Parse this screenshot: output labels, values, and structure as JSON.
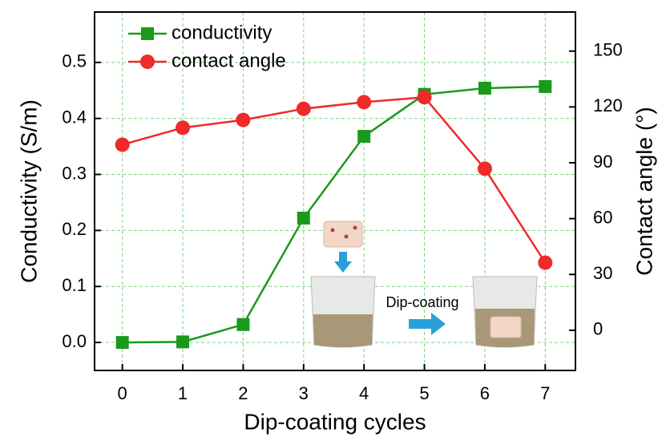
{
  "chart_data": {
    "type": "line",
    "xlabel": "Dip-coating cycles",
    "ylabel": "Conductivity (S/m)",
    "y2label": "Contact angle (°)",
    "x": [
      0,
      1,
      2,
      3,
      4,
      5,
      6,
      7
    ],
    "series": [
      {
        "name": "conductivity",
        "color": "#1a9a1a",
        "marker": "square",
        "values": [
          0.0,
          0.001,
          0.032,
          0.222,
          0.368,
          0.443,
          0.454,
          0.457
        ]
      },
      {
        "name": "contact angle",
        "color": "#ee2a2a",
        "marker": "circle",
        "axis": "y2",
        "values": [
          99.7,
          108.8,
          113,
          119,
          122.6,
          125.2,
          86.8,
          36.3
        ]
      }
    ],
    "xlim": [
      -0.46,
      7.5
    ],
    "xticks": [
      0,
      1,
      2,
      3,
      4,
      5,
      6,
      7
    ],
    "ylim": [
      -0.05,
      0.59
    ],
    "yticks": [
      {
        "value": 0,
        "label": "0.0"
      },
      0.1,
      0.2,
      0.3,
      0.4,
      0.5
    ],
    "y2lim": [
      -21.6,
      171
    ],
    "y2ticks": [
      0,
      30,
      60,
      90,
      120,
      150
    ],
    "grid": true,
    "grid_color": "#7fd07f",
    "legend": "upper left",
    "annotations": [
      "Dip-coating"
    ]
  }
}
